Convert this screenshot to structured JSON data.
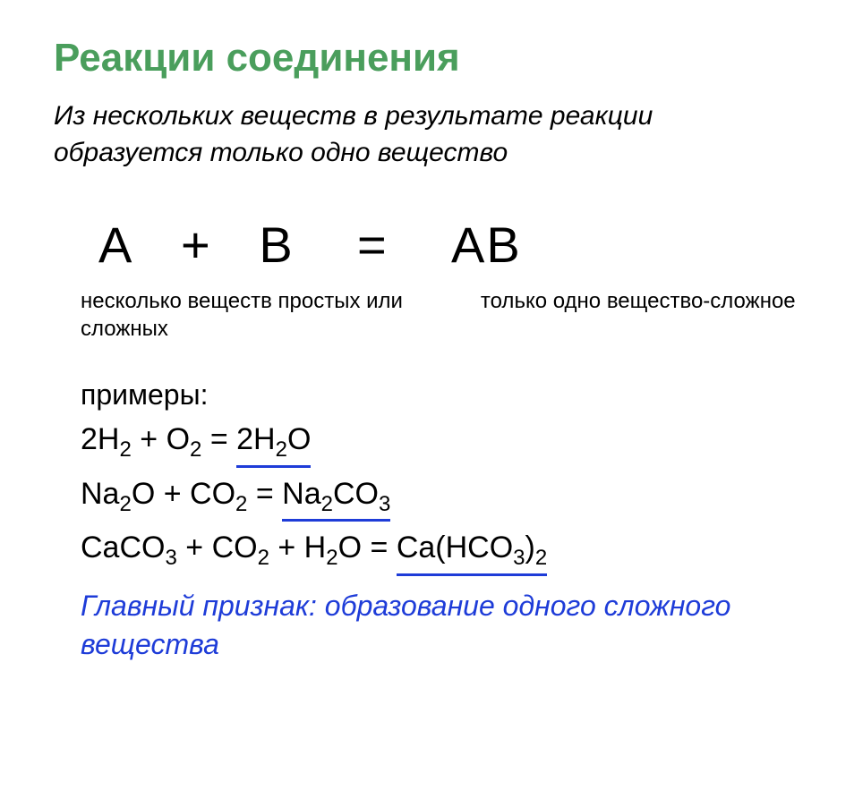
{
  "title": "Реакции соединения",
  "definition": "Из нескольких веществ в результате реакции образуется только одно вещество",
  "formula": {
    "left": "А",
    "plus": "+",
    "right": "В",
    "equals": "=",
    "product": "АВ",
    "label_left": "несколько веществ простых или сложных",
    "label_right": "только одно вещество-сложное"
  },
  "examples_label": "примеры:",
  "equations": [
    {
      "reactants": "2H₂ + O₂ = ",
      "product": "2H₂O"
    },
    {
      "reactants": "Na₂O + CO₂ = ",
      "product": "Na₂CO₃"
    },
    {
      "reactants": "CaCO₃ + CO₂ + H₂O = ",
      "product": "Ca(HCO₃)₂"
    }
  ],
  "main_sign": "Главный признак: образование одного сложного вещества",
  "colors": {
    "title_color": "#4a9e5c",
    "text_color": "#000000",
    "accent_color": "#1e3cd8",
    "background": "#ffffff"
  },
  "fonts": {
    "title_size": 44,
    "definition_size": 30,
    "formula_size": 56,
    "label_size": 24,
    "equation_size": 34,
    "sign_size": 32
  }
}
